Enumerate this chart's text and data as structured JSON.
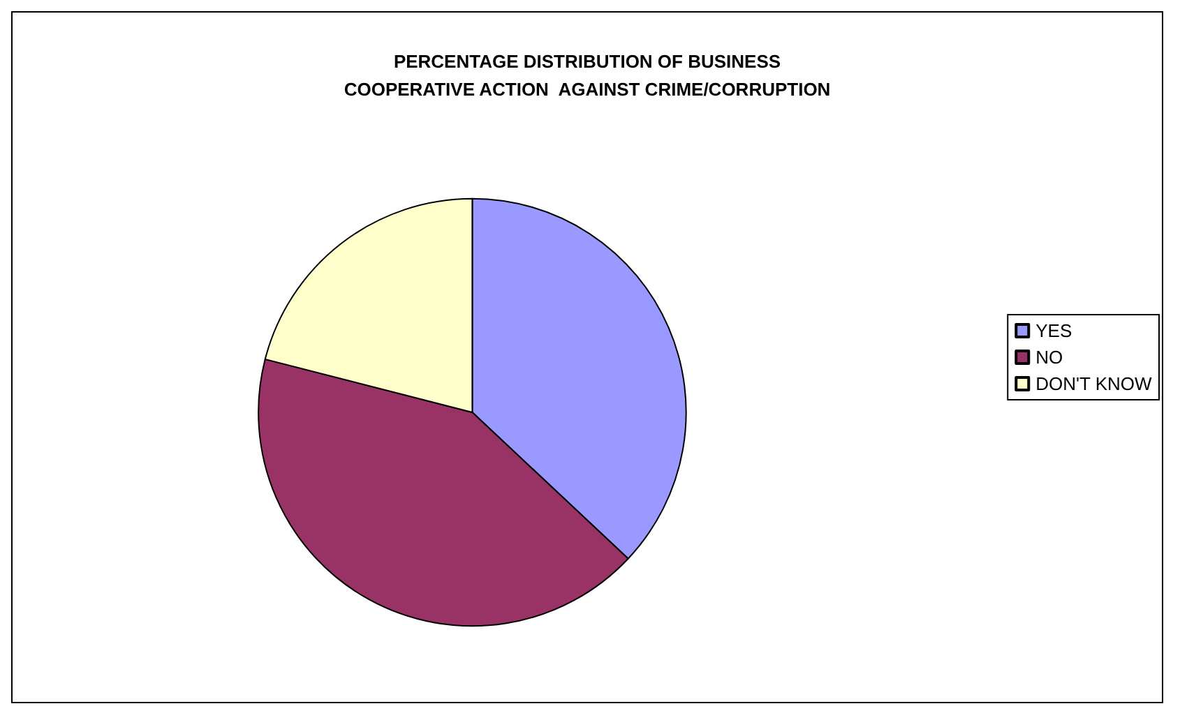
{
  "chart_data": {
    "type": "pie",
    "title": "PERCENTAGE DISTRIBUTION OF BUSINESS\nCOOPERATIVE ACTION  AGAINST CRIME/CORRUPTION",
    "categories": [
      "YES",
      "NO",
      "DON'T KNOW"
    ],
    "values": [
      37,
      42,
      21
    ],
    "colors": [
      "#9999ff",
      "#993366",
      "#ffffcc"
    ],
    "legend": "right"
  }
}
